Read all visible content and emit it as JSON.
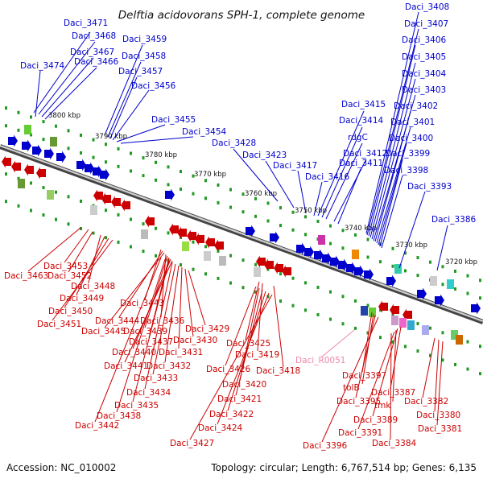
{
  "title": "Delftia acidovorans SPH-1, complete genome",
  "accession": "Accession: NC_010002",
  "summary": "Topology: circular; Length: 6,767,514 bp; Genes: 6,135",
  "ticks": [
    "3800 kbp",
    "3790 kbp",
    "3780 kbp",
    "3770 kbp",
    "3760 kbp",
    "3750 kbp",
    "3740 kbp",
    "3730 kbp",
    "3720 kbp"
  ],
  "colors": {
    "forward": "#0000cc",
    "reverse": "#cc0000",
    "rna": "#ee88aa",
    "backbone": "#999999",
    "tick": "#229922"
  },
  "genes_top": [
    "Daci_3471",
    "Daci_3468",
    "Daci_3467",
    "Daci_3466",
    "Daci_3474",
    "Daci_3459",
    "Daci_3458",
    "Daci_3457",
    "Daci_3456",
    "Daci_3455",
    "Daci_3454",
    "Daci_3428",
    "Daci_3423",
    "Daci_3417",
    "Daci_3416",
    "Daci_3415",
    "Daci_3414",
    "rdgC",
    "Daci_3412",
    "Daci_3411",
    "Daci_3408",
    "Daci_3407",
    "Daci_3406",
    "Daci_3405",
    "Daci_3404",
    "Daci_3403",
    "Daci_3402",
    "Daci_3401",
    "Daci_3400",
    "Daci_3399",
    "Daci_3398",
    "Daci_3393",
    "Daci_3386"
  ],
  "genes_bottom": [
    "Daci_3453",
    "Daci_3452",
    "Daci_3463",
    "Daci_3448",
    "Daci_3449",
    "Daci_3450",
    "Daci_3451",
    "Daci_3443",
    "Daci_3444",
    "Daci_3445",
    "Daci_3436",
    "Daci_3439",
    "Daci_3437",
    "Daci_3440",
    "Daci_3441",
    "Daci_3442",
    "Daci_3438",
    "Daci_3435",
    "Daci_3434",
    "Daci_3433",
    "Daci_3432",
    "Daci_3431",
    "Daci_3430",
    "Daci_3429",
    "Daci_3425",
    "Daci_3419",
    "Daci_3418",
    "Daci_3426",
    "Daci_3420",
    "Daci_3421",
    "Daci_3422",
    "Daci_3424",
    "Daci_3427",
    "Daci_3397",
    "tolB",
    "Daci_3395",
    "Daci_3396",
    "Daci_3387",
    "Daci_3389",
    "tmk",
    "Daci_3391",
    "Daci_3384",
    "Daci_3382",
    "Daci_3380",
    "Daci_3381"
  ],
  "rna_genes": [
    "Daci_R0051"
  ]
}
